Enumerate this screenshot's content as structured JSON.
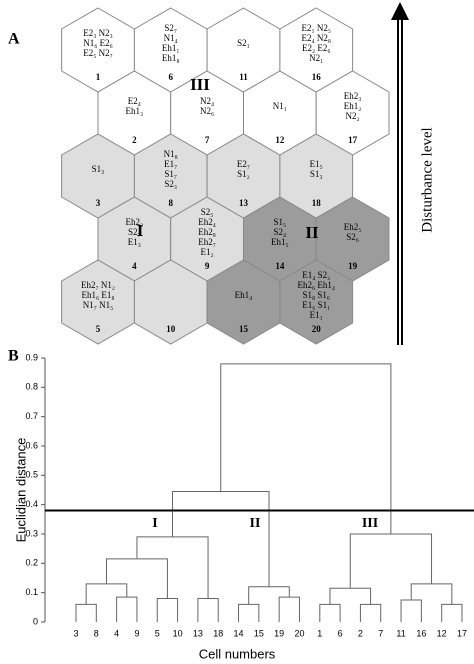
{
  "panel_a": {
    "label": "A",
    "arrow_label": "Disturbance level",
    "group_labels": [
      "III",
      "I",
      "II"
    ],
    "cells": [
      {
        "number": 1,
        "fill": "#ffffff",
        "lines": [
          "E2₃  N2₃",
          "N1₆  E2₆",
          "E2₅  N2₇"
        ]
      },
      {
        "number": 2,
        "fill": "#ffffff",
        "lines": [
          "E2₄",
          "Eh1₃"
        ]
      },
      {
        "number": 3,
        "fill": "#dedede",
        "lines": [
          "S1₃"
        ]
      },
      {
        "number": 4,
        "fill": "#dedede",
        "lines": [
          "Eh2₂",
          "S2₇",
          "E1₃"
        ]
      },
      {
        "number": 5,
        "fill": "#dedede",
        "lines": [
          "Eh2₇  N1₂",
          "Eh1₆  E1₈",
          "N1₇  N1₅"
        ]
      },
      {
        "number": 6,
        "fill": "#ffffff",
        "lines": [
          "S2₇",
          "N1₄",
          "Eh1₁",
          "Eh1₈"
        ]
      },
      {
        "number": 7,
        "fill": "#ffffff",
        "lines": [
          "N2₄",
          "N2₆"
        ]
      },
      {
        "number": 8,
        "fill": "#dedede",
        "lines": [
          "N1₈",
          "E1₇",
          "S1₇",
          "S2₃"
        ]
      },
      {
        "number": 9,
        "fill": "#dedede",
        "lines": [
          "S2₅",
          "Eh2₄",
          "Eh2₈",
          "Eh2₇",
          "E1₂"
        ]
      },
      {
        "number": 10,
        "fill": "#dedede",
        "lines": []
      },
      {
        "number": 11,
        "fill": "#ffffff",
        "lines": [
          "S2₁"
        ]
      },
      {
        "number": 12,
        "fill": "#ffffff",
        "lines": [
          "N1₁"
        ]
      },
      {
        "number": 13,
        "fill": "#dedede",
        "lines": [
          "E2₇",
          "S1₂"
        ]
      },
      {
        "number": 14,
        "fill": "#9c9c9c",
        "lines": [
          "S1₅",
          "S2₄",
          "Eh1₅"
        ]
      },
      {
        "number": 15,
        "fill": "#9c9c9c",
        "lines": [
          "Eh1₄"
        ]
      },
      {
        "number": 16,
        "fill": "#ffffff",
        "lines": [
          "E2₁  N2₅",
          "E2₄  N2₈",
          "E2₂  E2₆",
          "N2₁"
        ]
      },
      {
        "number": 17,
        "fill": "#ffffff",
        "lines": [
          "Eh2₃",
          "Eh1₂",
          "N2₂"
        ]
      },
      {
        "number": 18,
        "fill": "#dedede",
        "lines": [
          "E1₅",
          "S1₃"
        ]
      },
      {
        "number": 19,
        "fill": "#9c9c9c",
        "lines": [
          "Eh2₅",
          "S2₆"
        ]
      },
      {
        "number": 20,
        "fill": "#9c9c9c",
        "lines": [
          "E1₄  S2₂",
          "Eh2₆  Eh1₄",
          "S1₈  S1₆",
          "E1₆  S1₁",
          "E1₁"
        ]
      }
    ]
  },
  "chart_data": {
    "type": "dendrogram",
    "panel_label": "B",
    "y_label": "Euclidian distance",
    "x_label": "Cell numbers",
    "categories": [
      "3",
      "8",
      "4",
      "9",
      "5",
      "10",
      "13",
      "18",
      "14",
      "15",
      "19",
      "20",
      "1",
      "6",
      "2",
      "7",
      "11",
      "16",
      "12",
      "17"
    ],
    "links": [
      [
        0,
        1,
        0.06
      ],
      [
        2,
        3,
        0.085
      ],
      [
        20,
        21,
        0.13
      ],
      [
        4,
        5,
        0.08
      ],
      [
        22,
        23,
        0.215
      ],
      [
        6,
        7,
        0.08
      ],
      [
        24,
        25,
        0.29
      ],
      [
        8,
        9,
        0.06
      ],
      [
        10,
        11,
        0.085
      ],
      [
        27,
        28,
        0.12
      ],
      [
        12,
        13,
        0.06
      ],
      [
        14,
        15,
        0.06
      ],
      [
        30,
        31,
        0.115
      ],
      [
        16,
        17,
        0.075
      ],
      [
        18,
        19,
        0.06
      ],
      [
        33,
        34,
        0.13
      ],
      [
        32,
        35,
        0.3
      ],
      [
        26,
        29,
        0.445
      ],
      [
        37,
        36,
        0.88
      ]
    ],
    "threshold": 0.38,
    "cluster_labels": [
      "I",
      "II",
      "III"
    ],
    "ylim": [
      0,
      0.9
    ],
    "yticks": [
      0,
      0.1,
      0.2,
      0.3,
      0.4,
      0.5,
      0.6,
      0.7,
      0.8,
      0.9
    ],
    "color": "#666666"
  }
}
